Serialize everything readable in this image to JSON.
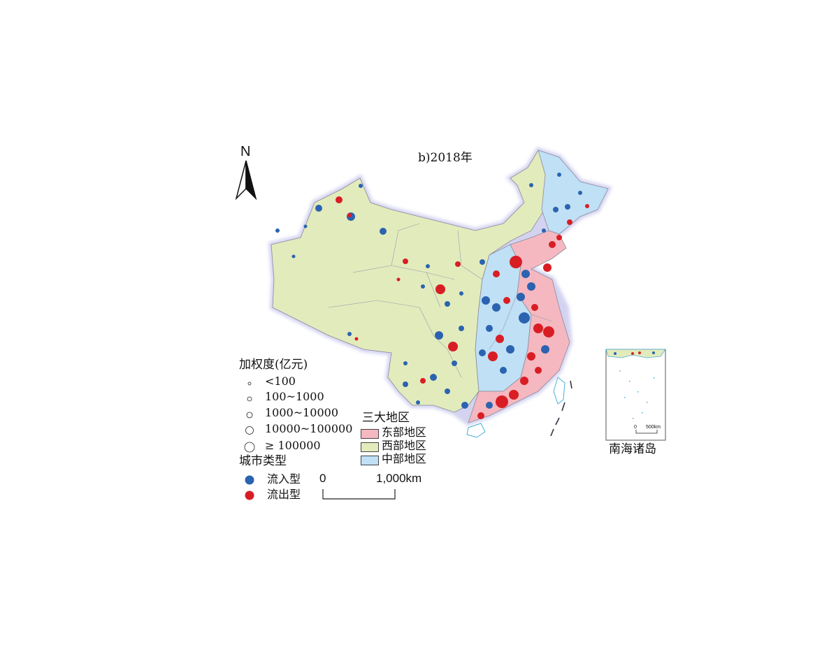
{
  "title": "b)2018年",
  "north_arrow": {
    "label": "N"
  },
  "size_legend": {
    "title": "加权度(亿元)",
    "classes": [
      "<100",
      "100~1000",
      "1000~10000",
      "10000~100000",
      "≥  100000"
    ]
  },
  "region_legend": {
    "title": "三大地区",
    "items": [
      {
        "label": "东部地区",
        "color": "#f5b8c0"
      },
      {
        "label": "西部地区",
        "color": "#e2ebbc"
      },
      {
        "label": "中部地区",
        "color": "#bfe0f5"
      }
    ]
  },
  "type_legend": {
    "title": "城市类型",
    "items": [
      {
        "label": "流入型",
        "color": "#2b63b0"
      },
      {
        "label": "流出型",
        "color": "#d81e24"
      }
    ]
  },
  "scale_bar": {
    "start": "0",
    "end": "1,000",
    "unit": "km"
  },
  "inset": {
    "title": "南海诸岛",
    "scale_start": "0",
    "scale_end": "500km"
  }
}
